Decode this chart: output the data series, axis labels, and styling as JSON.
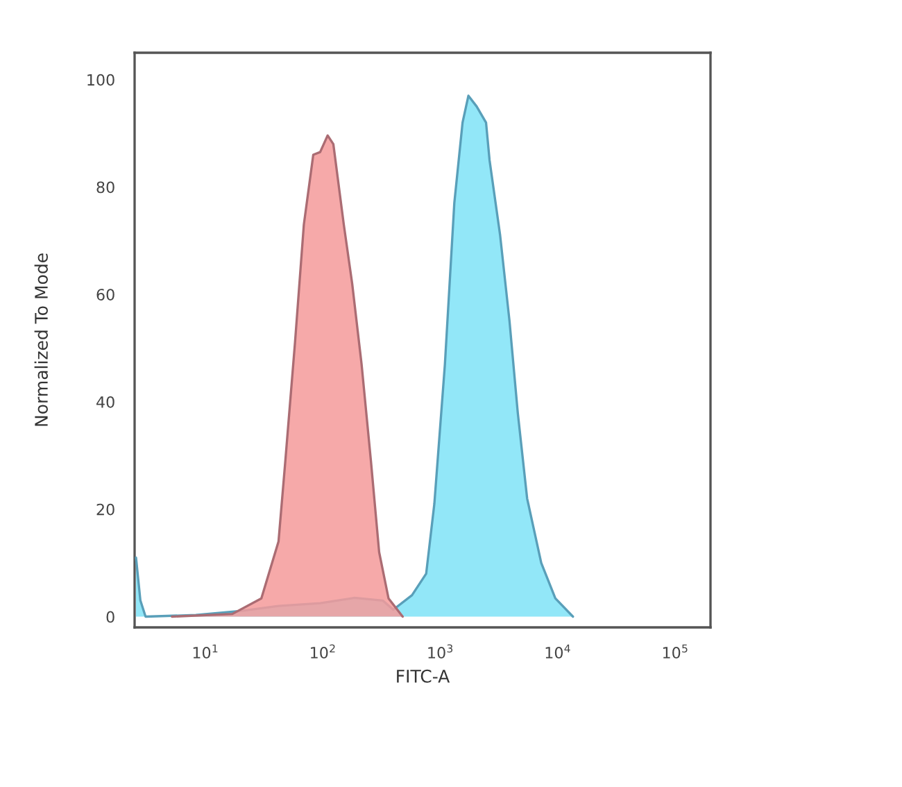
{
  "chart_data": {
    "type": "area",
    "xlabel": "FITC-A",
    "ylabel": "Normalized To Mode",
    "log": "x",
    "xlim": [
      2.5,
      200000
    ],
    "xticks": [
      {
        "value": 10,
        "label": "10$^{1}$"
      },
      {
        "value": 100,
        "label": "10$^{2}$"
      },
      {
        "value": 1000,
        "label": "10$^{3}$"
      },
      {
        "value": 10000,
        "label": "10$^{4}$"
      },
      {
        "value": 100000,
        "label": "10$^{5}$"
      }
    ],
    "ylim": [
      -2,
      105
    ],
    "yticks": [
      0,
      20,
      40,
      60,
      80,
      100
    ],
    "grid": false,
    "series": [
      {
        "color": "#7fe3f7",
        "x": [
          2.57,
          2.8,
          3.1,
          8.3,
          19,
          42,
          95,
          186,
          324,
          398,
          575,
          759,
          891,
          1096,
          1318,
          1549,
          1738,
          2042,
          2455,
          2630,
          3236,
          3890,
          4571,
          5495,
          7244,
          9550,
          13490
        ],
        "values": [
          11,
          3,
          0,
          0.3,
          1,
          2,
          2.5,
          3.5,
          3,
          1.3,
          4,
          8,
          21,
          47,
          77,
          92,
          97,
          95,
          92,
          85,
          71,
          55,
          38,
          22,
          10,
          3.4,
          0
        ]
      },
      {
        "color": "#f59a9a",
        "x": [
          5.2,
          17,
          30,
          42,
          48,
          58,
          69,
          83,
          95,
          110,
          123,
          151,
          178,
          214,
          257,
          302,
          363,
          479
        ],
        "values": [
          0,
          0.5,
          3.4,
          14,
          29,
          51,
          73,
          86,
          86.5,
          89.6,
          88,
          73,
          62,
          47,
          29,
          12,
          3.4,
          0
        ]
      }
    ]
  }
}
